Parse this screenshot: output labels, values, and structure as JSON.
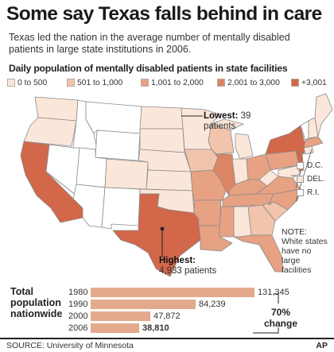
{
  "headline": "Some say Texas falls behind in care",
  "subhead": "Texas led the nation in the average number of mentally disabled patients in large state institutions in 2006.",
  "map_title": "Daily population of mentally disabled patients in state facilities",
  "colors": {
    "none": "#ffffff",
    "0_500": "#fbe6da",
    "501_1000": "#f2c4ac",
    "1001_2000": "#e7a283",
    "2001_3000": "#dc8564",
    "3001_plus": "#d2674a",
    "border": "#8a8a8a"
  },
  "legend": [
    {
      "label": "0 to 500",
      "color": "#fbe6da"
    },
    {
      "label": "501 to 1,000",
      "color": "#f2c4ac"
    },
    {
      "label": "1,001 to 2,000",
      "color": "#e7a283"
    },
    {
      "label": "2,001 to 3,000",
      "color": "#dc8564"
    },
    {
      "label": "+3,001",
      "color": "#d2674a"
    }
  ],
  "lowest": {
    "label": "Lowest:",
    "value": "39",
    "unit": "patients"
  },
  "highest": {
    "label": "Highest:",
    "value": "4,933 patients"
  },
  "small_states": [
    {
      "label": "D.C.",
      "color": "#ffffff"
    },
    {
      "label": "DEL.",
      "color": "#fbe6da"
    },
    {
      "label": "R.I.",
      "color": "#ffffff"
    }
  ],
  "note": {
    "title": "NOTE:",
    "text": "White states have no large facilities"
  },
  "totals": {
    "label": "Total population nationwide",
    "change_value": "70%",
    "change_label": "change"
  },
  "chart_data": {
    "type": "bar",
    "categories": [
      "1980",
      "1990",
      "2000",
      "2006"
    ],
    "values": [
      131345,
      84239,
      47872,
      38810
    ],
    "value_labels": [
      "131,345",
      "84,239",
      "47,872",
      "38,810"
    ],
    "title": "Total population nationwide"
  },
  "source": "SOURCE: University of Minnesota",
  "credit": "AP"
}
